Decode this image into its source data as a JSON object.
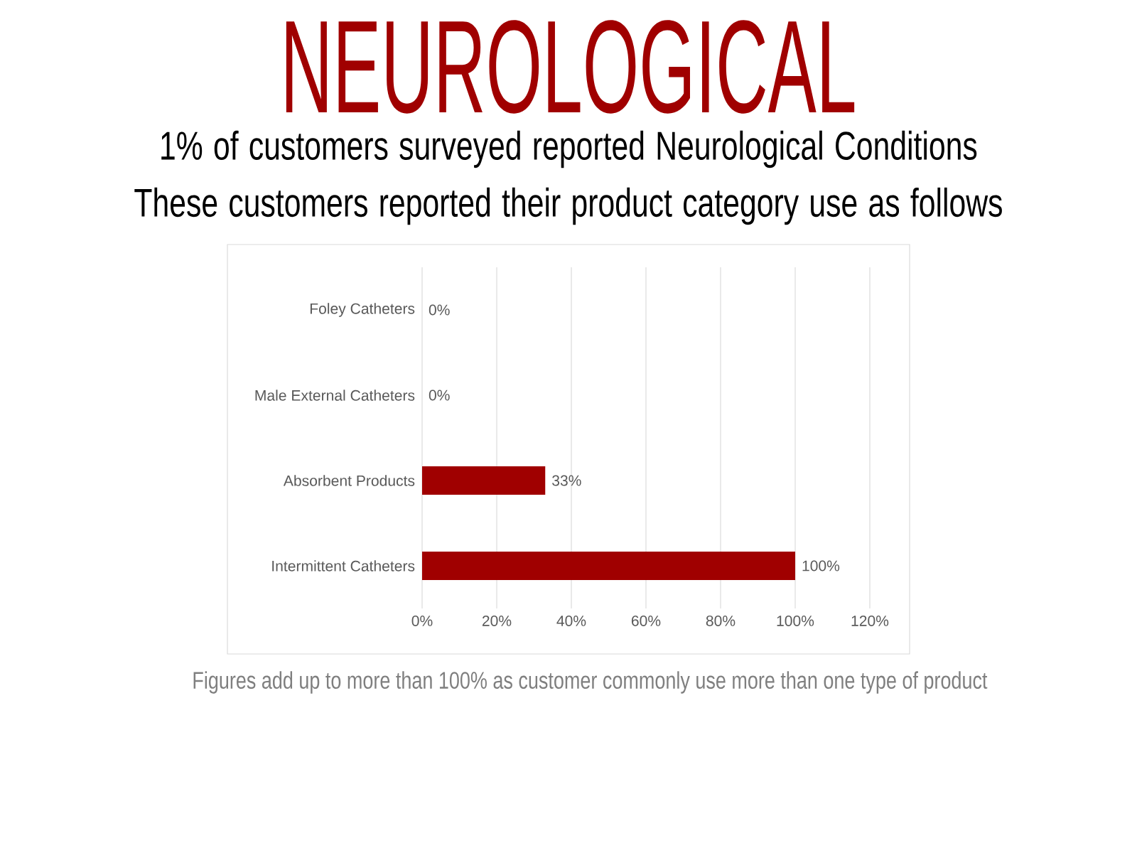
{
  "chart_data": {
    "type": "bar",
    "orientation": "horizontal",
    "title": "NEUROLOGICAL",
    "subtitle": "1% of customers surveyed reported Neurological Conditions\nThese customers reported their product category use as follows",
    "categories": [
      "Foley Catheters",
      "Male External Catheters",
      "Absorbent Products",
      "Intermittent Catheters"
    ],
    "values": [
      0,
      0,
      33,
      100
    ],
    "value_labels": [
      "0%",
      "0%",
      "33%",
      "100%"
    ],
    "color": "#a00000",
    "xlim": [
      0,
      120
    ],
    "xticks": [
      {
        "value": 0,
        "label": "0%"
      },
      {
        "value": 20,
        "label": "20%"
      },
      {
        "value": 40,
        "label": "40%"
      },
      {
        "value": 60,
        "label": "60%"
      },
      {
        "value": 80,
        "label": "80%"
      },
      {
        "value": 100,
        "label": "100%"
      },
      {
        "value": 120,
        "label": "120%"
      }
    ],
    "grid": "x",
    "annotations": [
      "Figures add up to more than 100% as customer commonly use more than one type of product"
    ]
  }
}
